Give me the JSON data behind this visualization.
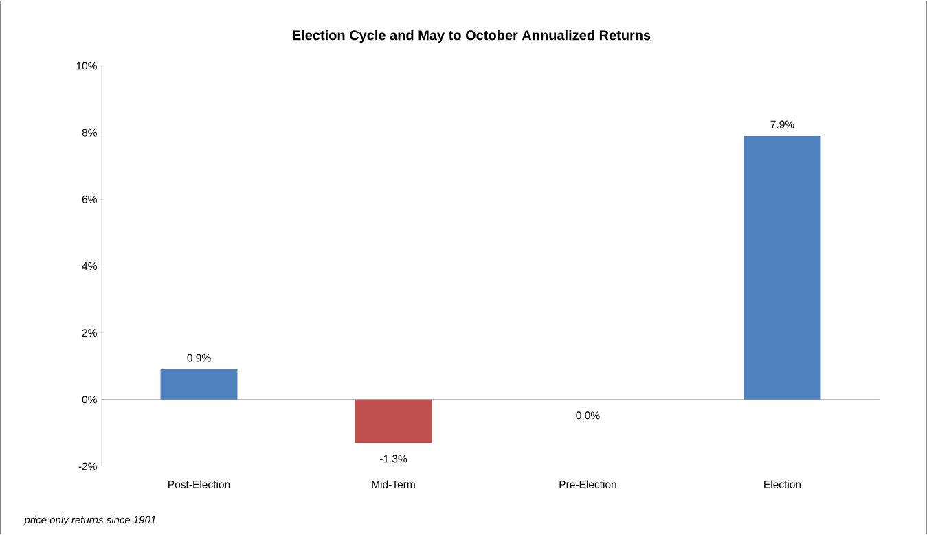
{
  "chart_data": {
    "type": "bar",
    "title": "Election Cycle and May to October Annualized Returns",
    "categories": [
      "Post-Election",
      "Mid-Term",
      "Pre-Election",
      "Election"
    ],
    "values": [
      0.9,
      -1.3,
      0.0,
      7.9
    ],
    "colors": [
      "#4f81bd",
      "#c0504d",
      "#4f81bd",
      "#4f81bd"
    ],
    "value_labels": [
      "0.9%",
      "-1.3%",
      "0.0%",
      "7.9%"
    ],
    "ylim": [
      -2,
      10
    ],
    "yticks": [
      {
        "value": -2,
        "label": "-2%"
      },
      {
        "value": 0,
        "label": "0%"
      },
      {
        "value": 2,
        "label": "2%"
      },
      {
        "value": 4,
        "label": "4%"
      },
      {
        "value": 6,
        "label": "6%"
      },
      {
        "value": 8,
        "label": "8%"
      },
      {
        "value": 10,
        "label": "10%"
      }
    ],
    "annotations": [
      "price only returns since 1901"
    ]
  }
}
